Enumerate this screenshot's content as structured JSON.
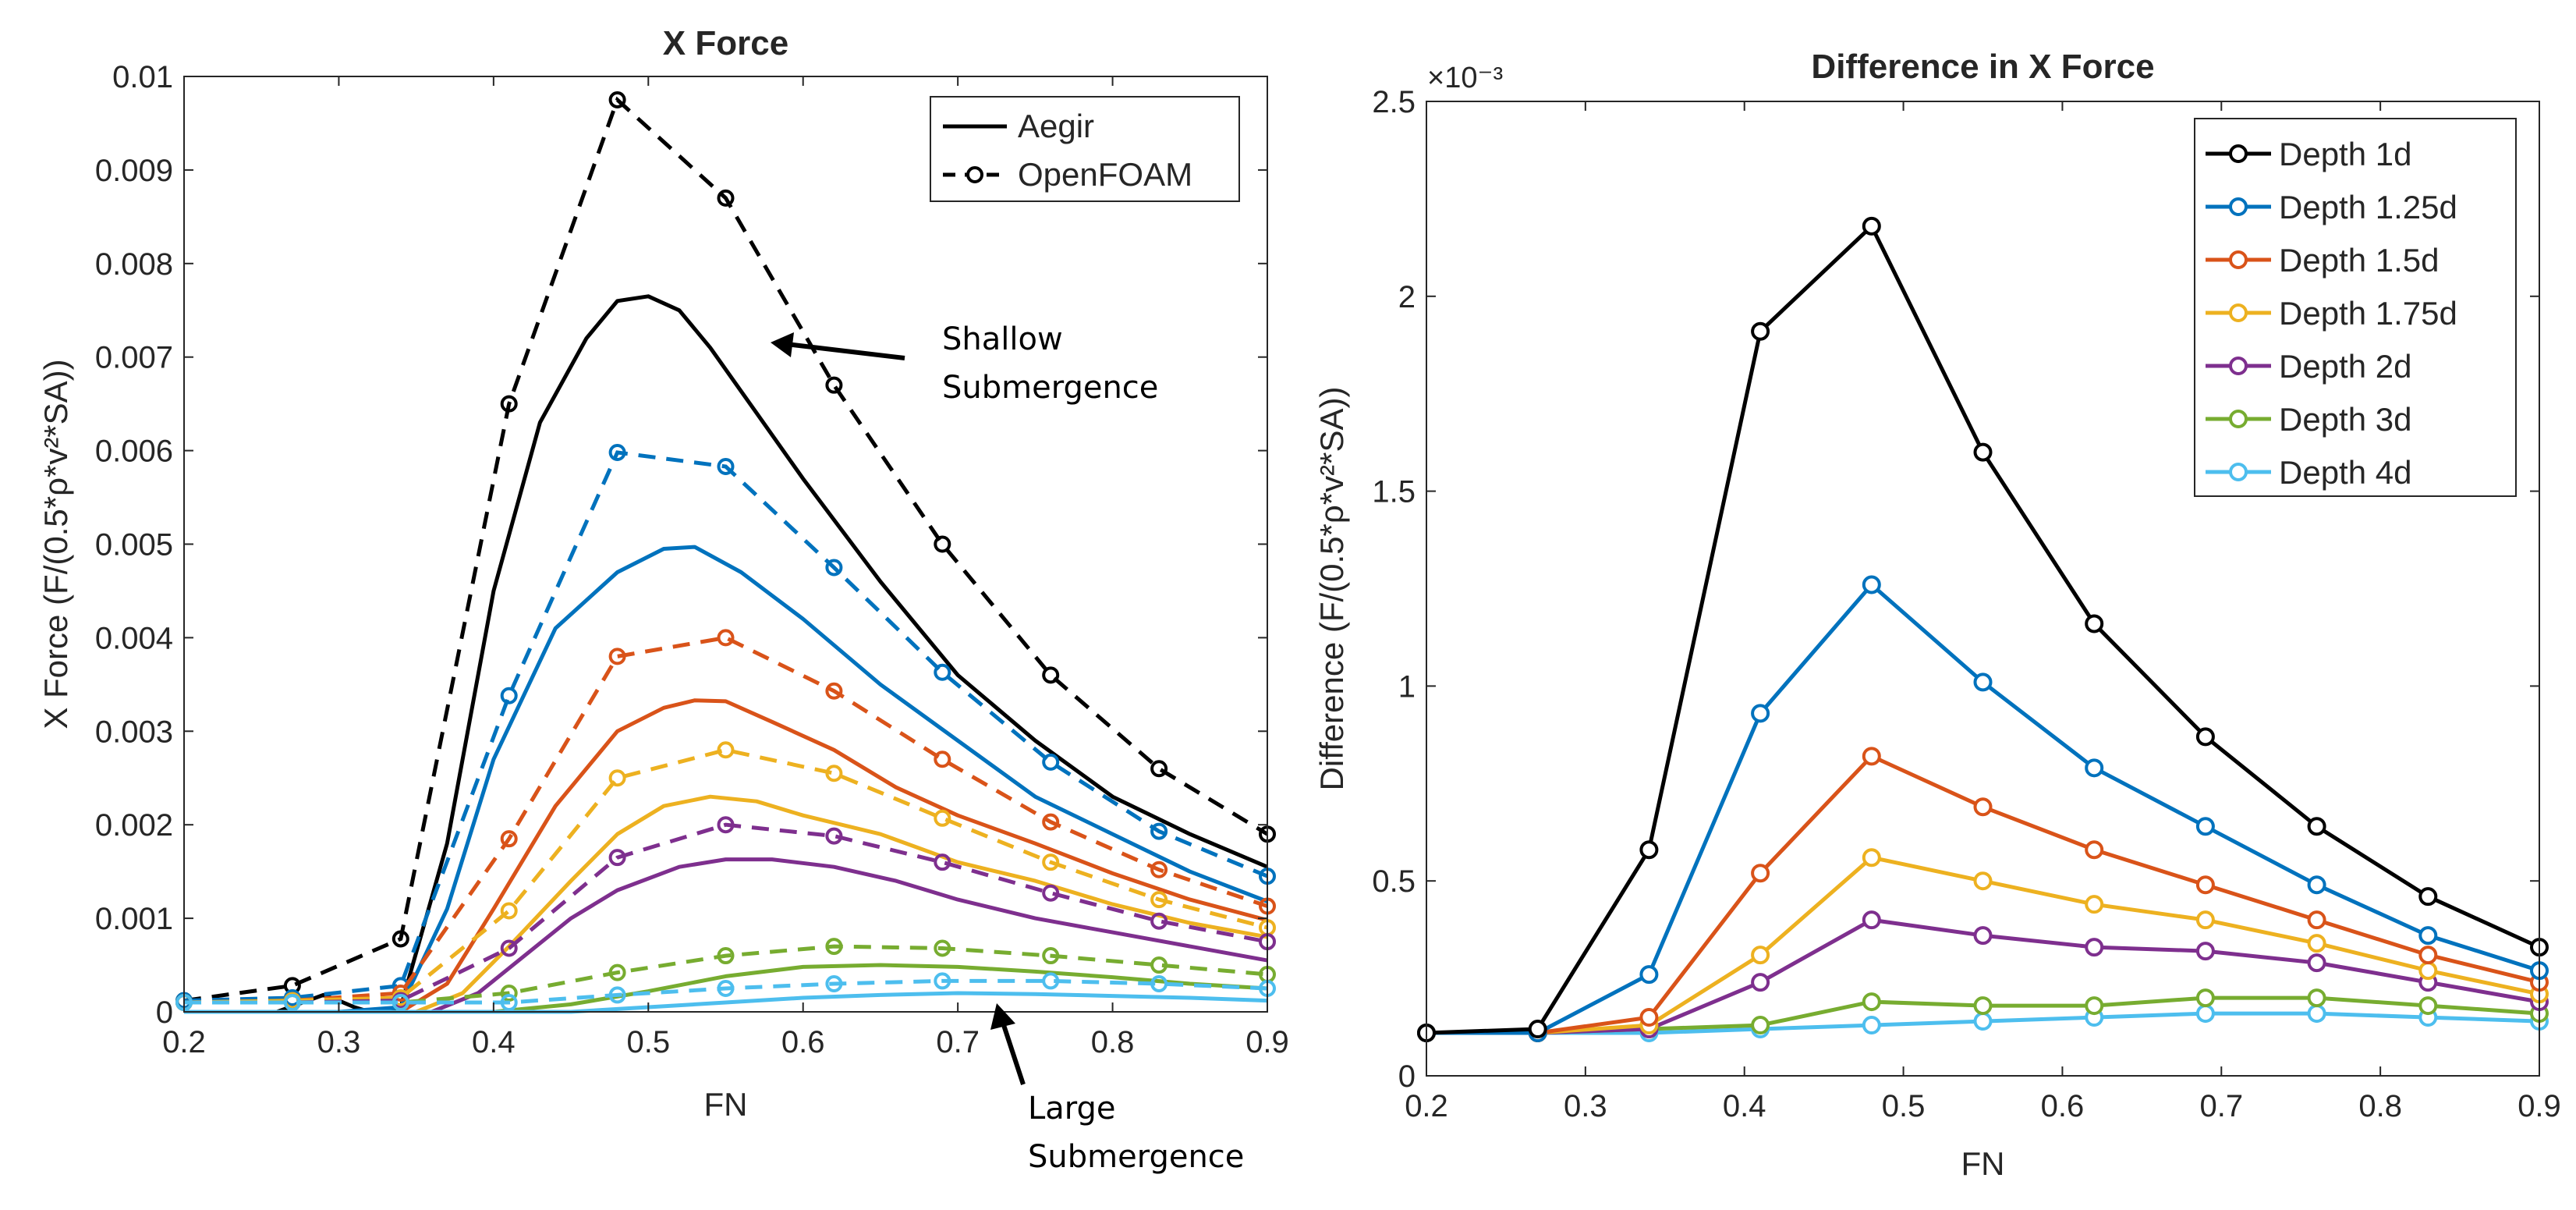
{
  "chart_data": [
    {
      "type": "line",
      "title": "X Force",
      "xlabel": "FN",
      "ylabel": "X Force (F/(0.5*ρ*v²*SA))",
      "xlim": [
        0.2,
        0.9
      ],
      "ylim": [
        0,
        0.01
      ],
      "xticks": [
        "0.2",
        "0.3",
        "0.4",
        "0.5",
        "0.6",
        "0.7",
        "0.8",
        "0.9"
      ],
      "yticks": [
        "0",
        "0.001",
        "0.002",
        "0.003",
        "0.004",
        "0.005",
        "0.006",
        "0.007",
        "0.008",
        "0.009",
        "0.01"
      ],
      "legend": {
        "position": "top-right",
        "entries": [
          "Aegir",
          "OpenFOAM"
        ]
      },
      "annotations": [
        {
          "text": [
            "Shallow",
            "Submergence"
          ]
        },
        {
          "text": [
            "Large",
            "Submergence"
          ]
        }
      ],
      "x_openfoam": [
        0.2,
        0.27,
        0.34,
        0.41,
        0.48,
        0.55,
        0.62,
        0.69,
        0.76,
        0.83,
        0.9
      ],
      "series": [
        {
          "name": "Depth 1d",
          "color": "#000000",
          "aegir_x": [
            0.2,
            0.26,
            0.28,
            0.29,
            0.3,
            0.31,
            0.32,
            0.33,
            0.34,
            0.37,
            0.4,
            0.43,
            0.46,
            0.48,
            0.5,
            0.52,
            0.54,
            0.57,
            0.6,
            0.65,
            0.7,
            0.75,
            0.8,
            0.85,
            0.9
          ],
          "aegir": [
            0,
            0,
            0.00012,
            0.00018,
            0.00012,
            5e-05,
            0,
            0,
            5e-05,
            0.0018,
            0.0045,
            0.0063,
            0.0072,
            0.0076,
            0.00765,
            0.0075,
            0.0071,
            0.0064,
            0.0057,
            0.0046,
            0.0036,
            0.0029,
            0.0023,
            0.0019,
            0.00155
          ],
          "openfoam": [
            0.00012,
            0.00028,
            0.00078,
            0.0065,
            0.00975,
            0.0087,
            0.0067,
            0.005,
            0.0036,
            0.0026,
            0.0019
          ]
        },
        {
          "name": "Depth 1.25d",
          "color": "#0072BD",
          "aegir_x": [
            0.2,
            0.3,
            0.34,
            0.37,
            0.4,
            0.44,
            0.48,
            0.51,
            0.53,
            0.56,
            0.6,
            0.65,
            0.7,
            0.75,
            0.8,
            0.85,
            0.9
          ],
          "aegir": [
            0,
            0,
            5e-05,
            0.0011,
            0.0027,
            0.0041,
            0.0047,
            0.00495,
            0.00497,
            0.0047,
            0.0042,
            0.0035,
            0.0029,
            0.0023,
            0.0019,
            0.0015,
            0.00118
          ],
          "openfoam": [
            0.00012,
            0.00015,
            0.00028,
            0.00338,
            0.00598,
            0.00583,
            0.00475,
            0.00363,
            0.00267,
            0.00193,
            0.00145
          ]
        },
        {
          "name": "Depth 1.5d",
          "color": "#D95319",
          "aegir_x": [
            0.2,
            0.34,
            0.37,
            0.4,
            0.44,
            0.48,
            0.51,
            0.53,
            0.55,
            0.58,
            0.62,
            0.66,
            0.7,
            0.75,
            0.8,
            0.85,
            0.9
          ],
          "aegir": [
            0,
            0,
            0.0003,
            0.0011,
            0.0022,
            0.003,
            0.00325,
            0.00333,
            0.00332,
            0.0031,
            0.0028,
            0.0024,
            0.0021,
            0.0018,
            0.00148,
            0.0012,
            0.00098
          ],
          "openfoam": [
            0.0001,
            0.00012,
            0.0002,
            0.00185,
            0.0038,
            0.004,
            0.00343,
            0.0027,
            0.00203,
            0.00152,
            0.00113
          ]
        },
        {
          "name": "Depth 1.75d",
          "color": "#EDB120",
          "aegir_x": [
            0.2,
            0.35,
            0.38,
            0.41,
            0.45,
            0.48,
            0.51,
            0.54,
            0.57,
            0.6,
            0.65,
            0.7,
            0.75,
            0.8,
            0.85,
            0.9
          ],
          "aegir": [
            0,
            0,
            0.0002,
            0.0007,
            0.0014,
            0.0019,
            0.0022,
            0.0023,
            0.00225,
            0.0021,
            0.0019,
            0.0016,
            0.0014,
            0.00115,
            0.00095,
            0.0008
          ],
          "openfoam": [
            0.0001,
            0.00012,
            0.00015,
            0.00108,
            0.0025,
            0.0028,
            0.00255,
            0.00207,
            0.0016,
            0.0012,
            0.0009
          ]
        },
        {
          "name": "Depth 2d",
          "color": "#7E2F8E",
          "aegir_x": [
            0.2,
            0.36,
            0.39,
            0.42,
            0.45,
            0.48,
            0.52,
            0.55,
            0.58,
            0.62,
            0.66,
            0.7,
            0.75,
            0.8,
            0.85,
            0.9
          ],
          "aegir": [
            0,
            0,
            0.0002,
            0.0006,
            0.001,
            0.0013,
            0.00155,
            0.00163,
            0.00163,
            0.00155,
            0.0014,
            0.0012,
            0.001,
            0.00085,
            0.0007,
            0.00055
          ],
          "openfoam": [
            0.0001,
            0.0001,
            0.00012,
            0.00068,
            0.00165,
            0.002,
            0.00188,
            0.0016,
            0.00127,
            0.00097,
            0.00075
          ]
        },
        {
          "name": "Depth 3d",
          "color": "#77AC30",
          "aegir_x": [
            0.2,
            0.4,
            0.45,
            0.5,
            0.55,
            0.6,
            0.65,
            0.7,
            0.75,
            0.8,
            0.85,
            0.9
          ],
          "aegir": [
            0,
            0,
            8e-05,
            0.00022,
            0.00038,
            0.00048,
            0.0005,
            0.00048,
            0.00043,
            0.00037,
            0.0003,
            0.00025
          ],
          "openfoam": [
            0.0001,
            0.0001,
            0.0001,
            0.0002,
            0.00042,
            0.0006,
            0.0007,
            0.00068,
            0.0006,
            0.0005,
            0.0004
          ]
        },
        {
          "name": "Depth 4d",
          "color": "#4DBEEE",
          "aegir_x": [
            0.2,
            0.45,
            0.5,
            0.55,
            0.6,
            0.65,
            0.7,
            0.75,
            0.8,
            0.85,
            0.9
          ],
          "aegir": [
            0,
            0,
            5e-05,
            0.0001,
            0.00015,
            0.00018,
            0.0002,
            0.00019,
            0.00017,
            0.00015,
            0.00012
          ],
          "openfoam": [
            0.0001,
            0.0001,
            0.0001,
            0.0001,
            0.00018,
            0.00025,
            0.0003,
            0.00033,
            0.00033,
            0.0003,
            0.00025
          ]
        }
      ]
    },
    {
      "type": "line",
      "title": "Difference in X Force",
      "xlabel": "FN",
      "ylabel": "Difference (F/(0.5*ρ*v²*SA))",
      "exponent_label": "×10⁻³",
      "xlim": [
        0.2,
        0.9
      ],
      "ylim": [
        0,
        2.5
      ],
      "xticks": [
        "0.2",
        "0.3",
        "0.4",
        "0.5",
        "0.6",
        "0.7",
        "0.8",
        "0.9"
      ],
      "yticks": [
        "0",
        "0.5",
        "1",
        "1.5",
        "2",
        "2.5"
      ],
      "legend": {
        "position": "top-right"
      },
      "x": [
        0.2,
        0.27,
        0.34,
        0.41,
        0.48,
        0.55,
        0.62,
        0.69,
        0.76,
        0.83,
        0.9
      ],
      "series": [
        {
          "name": "Depth 1d",
          "color": "#000000",
          "values": [
            0.11,
            0.12,
            0.58,
            1.91,
            2.18,
            1.6,
            1.16,
            0.87,
            0.64,
            0.46,
            0.33
          ]
        },
        {
          "name": "Depth 1.25d",
          "color": "#0072BD",
          "values": [
            0.11,
            0.11,
            0.26,
            0.93,
            1.26,
            1.01,
            0.79,
            0.64,
            0.49,
            0.36,
            0.27
          ]
        },
        {
          "name": "Depth 1.5d",
          "color": "#D95319",
          "values": [
            0.11,
            0.11,
            0.15,
            0.52,
            0.82,
            0.69,
            0.58,
            0.49,
            0.4,
            0.31,
            0.24
          ]
        },
        {
          "name": "Depth 1.75d",
          "color": "#EDB120",
          "values": [
            0.11,
            0.11,
            0.13,
            0.31,
            0.56,
            0.5,
            0.44,
            0.4,
            0.34,
            0.27,
            0.21
          ]
        },
        {
          "name": "Depth 2d",
          "color": "#7E2F8E",
          "values": [
            0.11,
            0.11,
            0.12,
            0.24,
            0.4,
            0.36,
            0.33,
            0.32,
            0.29,
            0.24,
            0.19
          ]
        },
        {
          "name": "Depth 3d",
          "color": "#77AC30",
          "values": [
            0.11,
            0.11,
            0.12,
            0.13,
            0.19,
            0.18,
            0.18,
            0.2,
            0.2,
            0.18,
            0.16
          ]
        },
        {
          "name": "Depth 4d",
          "color": "#4DBEEE",
          "values": [
            0.11,
            0.11,
            0.11,
            0.12,
            0.13,
            0.14,
            0.15,
            0.16,
            0.16,
            0.15,
            0.14
          ]
        }
      ]
    }
  ]
}
